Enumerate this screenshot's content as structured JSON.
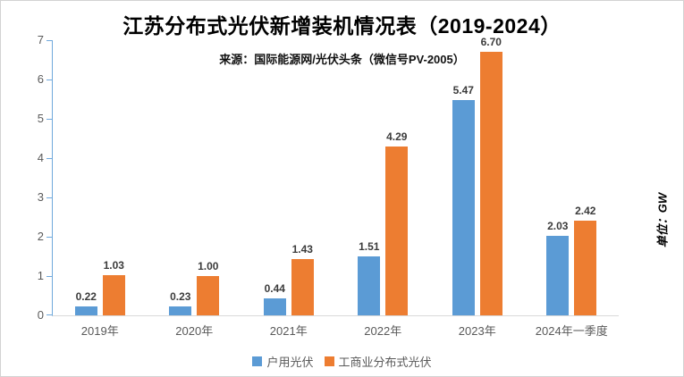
{
  "chart_data": {
    "type": "bar",
    "title": "江苏分布式光伏新增装机情况表（2019-2024）",
    "subtitle": "来源：国际能源网/光伏头条（微信号PV-2005）",
    "unit_label": "单位：GW",
    "categories": [
      "2019年",
      "2020年",
      "2021年",
      "2022年",
      "2023年",
      "2024年一季度"
    ],
    "series": [
      {
        "name": "户用光伏",
        "color": "#5B9BD5",
        "values": [
          0.22,
          0.23,
          0.44,
          1.51,
          5.47,
          2.03
        ]
      },
      {
        "name": "工商业分布式光伏",
        "color": "#ED7D31",
        "values": [
          1.03,
          1.0,
          1.43,
          4.29,
          6.7,
          2.42
        ]
      }
    ],
    "ylim": [
      0,
      7
    ],
    "y_ticks": [
      0,
      1,
      2,
      3,
      4,
      5,
      6,
      7
    ],
    "grid": false,
    "legend_position": "bottom",
    "data_label_decimals": 2,
    "colors": {
      "axis_line": "#6FA8DC",
      "x_axis_line": "#D9D9D9",
      "tick_label": "#595959",
      "data_label": "#3B3B3B",
      "title": "#000000"
    }
  }
}
